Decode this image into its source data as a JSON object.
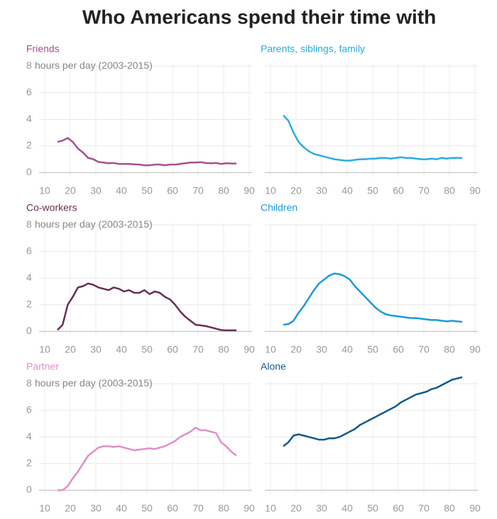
{
  "title": "Who Americans spend their time with",
  "chart_data": [
    {
      "type": "line",
      "title": "Friends",
      "ylabel": "hours per day (2003-2015)",
      "color": "#a8508f",
      "x": [
        15,
        17,
        19,
        21,
        23,
        25,
        27,
        29,
        31,
        33,
        35,
        37,
        39,
        41,
        43,
        45,
        47,
        49,
        51,
        53,
        55,
        57,
        59,
        61,
        63,
        65,
        67,
        69,
        71,
        73,
        75,
        77,
        79,
        81,
        83,
        85
      ],
      "values": [
        2.3,
        2.4,
        2.6,
        2.3,
        1.8,
        1.5,
        1.1,
        1.0,
        0.8,
        0.75,
        0.7,
        0.72,
        0.65,
        0.65,
        0.65,
        0.62,
        0.6,
        0.55,
        0.55,
        0.6,
        0.6,
        0.55,
        0.6,
        0.6,
        0.65,
        0.7,
        0.75,
        0.75,
        0.78,
        0.72,
        0.7,
        0.72,
        0.65,
        0.7,
        0.68,
        0.68
      ],
      "xlim": [
        10,
        90
      ],
      "xticks": [
        10,
        20,
        30,
        40,
        50,
        60,
        70,
        80,
        90
      ],
      "ylim": [
        -0.3,
        8.6
      ],
      "yticks": [
        0,
        2,
        4,
        6,
        8
      ],
      "grid": true
    },
    {
      "type": "line",
      "title": "Parents, siblings, family",
      "color": "#29aee0",
      "x": [
        15,
        17,
        19,
        21,
        23,
        25,
        27,
        29,
        31,
        33,
        35,
        37,
        39,
        41,
        43,
        45,
        47,
        49,
        51,
        53,
        55,
        57,
        59,
        61,
        63,
        65,
        67,
        69,
        71,
        73,
        75,
        77,
        79,
        81,
        83,
        85
      ],
      "values": [
        4.3,
        3.9,
        3.0,
        2.3,
        1.9,
        1.6,
        1.4,
        1.3,
        1.2,
        1.1,
        1.0,
        0.95,
        0.9,
        0.9,
        0.95,
        1.0,
        1.0,
        1.05,
        1.05,
        1.1,
        1.1,
        1.05,
        1.1,
        1.15,
        1.1,
        1.1,
        1.05,
        1.0,
        1.0,
        1.05,
        1.0,
        1.1,
        1.05,
        1.1,
        1.1,
        1.1
      ],
      "xlim": [
        10,
        90
      ],
      "xticks": [
        10,
        20,
        30,
        40,
        50,
        60,
        70,
        80,
        90
      ],
      "ylim": [
        -0.3,
        8.6
      ],
      "yticks": [
        0,
        2,
        4,
        6,
        8
      ],
      "grid": true
    },
    {
      "type": "line",
      "title": "Co-workers",
      "ylabel": "hours per day (2003-2015)",
      "color": "#6b2d55",
      "x": [
        15,
        17,
        19,
        21,
        23,
        25,
        27,
        29,
        31,
        33,
        35,
        37,
        39,
        41,
        43,
        45,
        47,
        49,
        51,
        53,
        55,
        57,
        59,
        61,
        63,
        65,
        67,
        69,
        71,
        73,
        75,
        77,
        79,
        81,
        83,
        85
      ],
      "values": [
        0.1,
        0.5,
        2.0,
        2.6,
        3.3,
        3.4,
        3.6,
        3.5,
        3.3,
        3.2,
        3.1,
        3.3,
        3.2,
        3.0,
        3.1,
        2.9,
        2.9,
        3.1,
        2.8,
        3.0,
        2.9,
        2.6,
        2.4,
        2.0,
        1.5,
        1.1,
        0.8,
        0.5,
        0.45,
        0.4,
        0.3,
        0.2,
        0.1,
        0.08,
        0.08,
        0.08
      ],
      "xlim": [
        10,
        90
      ],
      "xticks": [
        10,
        20,
        30,
        40,
        50,
        60,
        70,
        80,
        90
      ],
      "ylim": [
        -0.3,
        8.6
      ],
      "yticks": [
        0,
        2,
        4,
        6,
        8
      ],
      "grid": true
    },
    {
      "type": "line",
      "title": "Children",
      "color": "#1c9ad6",
      "x": [
        15,
        17,
        19,
        21,
        23,
        25,
        27,
        29,
        31,
        33,
        35,
        37,
        39,
        41,
        43,
        45,
        47,
        49,
        51,
        53,
        55,
        57,
        59,
        61,
        63,
        65,
        67,
        69,
        71,
        73,
        75,
        77,
        79,
        81,
        83,
        85
      ],
      "values": [
        0.5,
        0.55,
        0.8,
        1.4,
        1.9,
        2.5,
        3.1,
        3.6,
        3.9,
        4.2,
        4.35,
        4.3,
        4.15,
        3.9,
        3.4,
        3.0,
        2.6,
        2.2,
        1.8,
        1.5,
        1.3,
        1.2,
        1.15,
        1.1,
        1.05,
        1.0,
        1.0,
        0.95,
        0.9,
        0.85,
        0.85,
        0.8,
        0.75,
        0.8,
        0.75,
        0.72
      ],
      "xlim": [
        10,
        90
      ],
      "xticks": [
        10,
        20,
        30,
        40,
        50,
        60,
        70,
        80,
        90
      ],
      "ylim": [
        -0.3,
        8.6
      ],
      "yticks": [
        0,
        2,
        4,
        6,
        8
      ],
      "grid": true
    },
    {
      "type": "line",
      "title": "Partner",
      "ylabel": "hours per day (2003-2015)",
      "color": "#e08fc8",
      "x": [
        15,
        17,
        19,
        21,
        23,
        25,
        27,
        29,
        31,
        33,
        35,
        37,
        39,
        41,
        43,
        45,
        47,
        49,
        51,
        53,
        55,
        57,
        59,
        61,
        63,
        65,
        67,
        69,
        71,
        73,
        75,
        77,
        79,
        81,
        83,
        85
      ],
      "values": [
        0.0,
        0.0,
        0.3,
        0.9,
        1.4,
        2.0,
        2.6,
        2.9,
        3.2,
        3.3,
        3.3,
        3.25,
        3.3,
        3.2,
        3.1,
        3.0,
        3.05,
        3.1,
        3.15,
        3.1,
        3.2,
        3.3,
        3.5,
        3.7,
        4.0,
        4.2,
        4.4,
        4.7,
        4.5,
        4.5,
        4.4,
        4.3,
        3.6,
        3.3,
        2.9,
        2.6
      ],
      "xlim": [
        10,
        90
      ],
      "xticks": [
        10,
        20,
        30,
        40,
        50,
        60,
        70,
        80,
        90
      ],
      "ylim": [
        -0.3,
        8.6
      ],
      "yticks": [
        0,
        2,
        4,
        6,
        8
      ],
      "grid": true
    },
    {
      "type": "line",
      "title": "Alone",
      "color": "#0f5a8e",
      "x": [
        15,
        17,
        19,
        21,
        23,
        25,
        27,
        29,
        31,
        33,
        35,
        37,
        39,
        41,
        43,
        45,
        47,
        49,
        51,
        53,
        55,
        57,
        59,
        61,
        63,
        65,
        67,
        69,
        71,
        73,
        75,
        77,
        79,
        81,
        83,
        85
      ],
      "values": [
        3.3,
        3.6,
        4.1,
        4.2,
        4.1,
        4.0,
        3.9,
        3.8,
        3.8,
        3.9,
        3.9,
        4.0,
        4.2,
        4.4,
        4.6,
        4.9,
        5.1,
        5.3,
        5.5,
        5.7,
        5.9,
        6.1,
        6.3,
        6.6,
        6.8,
        7.0,
        7.2,
        7.3,
        7.4,
        7.6,
        7.7,
        7.9,
        8.1,
        8.3,
        8.4,
        8.5
      ],
      "xlim": [
        10,
        90
      ],
      "xticks": [
        10,
        20,
        30,
        40,
        50,
        60,
        70,
        80,
        90
      ],
      "ylim": [
        -0.3,
        8.6
      ],
      "yticks": [
        0,
        2,
        4,
        6,
        8
      ],
      "grid": true
    }
  ]
}
